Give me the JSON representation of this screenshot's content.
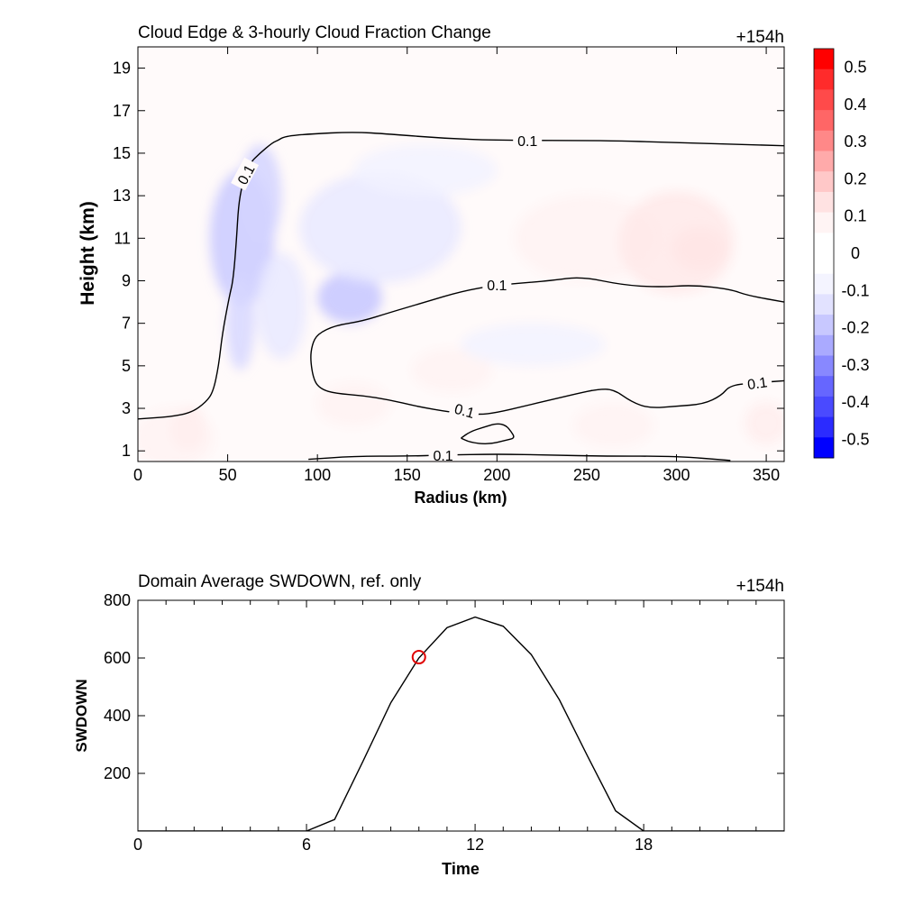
{
  "chart_data": [
    {
      "type": "contour",
      "title": "Cloud Edge & 3-hourly Cloud Fraction Change",
      "time_label": "+154h",
      "xlabel": "Radius (km)",
      "ylabel": "Height (km)",
      "xlim": [
        0,
        360
      ],
      "ylim": [
        0.5,
        20
      ],
      "xticks": [
        "0",
        "50",
        "100",
        "150",
        "200",
        "250",
        "300",
        "350"
      ],
      "yticks": [
        "1",
        "3",
        "5",
        "7",
        "9",
        "11",
        "13",
        "15",
        "17",
        "19"
      ],
      "colorbar": {
        "range": [
          -0.55,
          0.55
        ],
        "labels": [
          "0.5",
          "0.4",
          "0.3",
          "0.2",
          "0.1",
          "0",
          "-0.1",
          "-0.2",
          "-0.3",
          "-0.4",
          "-0.5"
        ],
        "colors_top_to_bottom": [
          "#ff0000",
          "#ff2b2b",
          "#ff4a4a",
          "#ff6666",
          "#ff8888",
          "#ffaaaa",
          "#ffc8c8",
          "#ffe2e2",
          "#fff4f4",
          "#ffffff",
          "#ffffff",
          "#f4f4ff",
          "#e2e2ff",
          "#c8c8ff",
          "#aaaaff",
          "#8888ff",
          "#6666ff",
          "#4a4aff",
          "#2b2bff",
          "#0000ff"
        ]
      },
      "contour_level": "0.1",
      "contours": [
        {
          "level": "0.1",
          "points": [
            [
              0,
              2.5
            ],
            [
              18,
              2.6
            ],
            [
              30,
              2.8
            ],
            [
              38,
              3.3
            ],
            [
              42,
              3.8
            ],
            [
              45,
              5.0
            ],
            [
              47,
              6.5
            ],
            [
              51,
              8.3
            ],
            [
              53,
              9.0
            ],
            [
              55,
              11.0
            ],
            [
              56,
              12.5
            ],
            [
              58,
              13.5
            ],
            [
              62,
              14.5
            ],
            [
              68,
              15.0
            ],
            [
              75,
              15.5
            ],
            [
              78,
              15.6
            ],
            [
              82,
              15.8
            ],
            [
              95,
              15.9
            ],
            [
              120,
              16.0
            ],
            [
              140,
              15.9
            ],
            [
              170,
              15.7
            ],
            [
              200,
              15.6
            ],
            [
              260,
              15.6
            ],
            [
              300,
              15.5
            ],
            [
              360,
              15.35
            ]
          ]
        },
        {
          "level": "0.1",
          "points": [
            [
              360,
              8.0
            ],
            [
              340,
              8.3
            ],
            [
              330,
              8.6
            ],
            [
              310,
              8.8
            ],
            [
              290,
              8.7
            ],
            [
              270,
              8.8
            ],
            [
              247,
              9.2
            ],
            [
              230,
              9.0
            ],
            [
              200,
              8.8
            ],
            [
              180,
              8.5
            ],
            [
              160,
              8.0
            ],
            [
              140,
              7.5
            ],
            [
              125,
              7.1
            ],
            [
              110,
              6.9
            ],
            [
              100,
              6.5
            ],
            [
              97,
              6.0
            ],
            [
              96,
              5.3
            ],
            [
              98,
              4.3
            ],
            [
              102,
              3.9
            ],
            [
              110,
              3.7
            ],
            [
              125,
              3.6
            ],
            [
              140,
              3.4
            ],
            [
              155,
              3.1
            ],
            [
              175,
              2.8
            ],
            [
              190,
              2.7
            ],
            [
              200,
              2.8
            ],
            [
              215,
              3.1
            ],
            [
              230,
              3.4
            ],
            [
              245,
              3.7
            ],
            [
              256,
              3.9
            ],
            [
              265,
              3.9
            ],
            [
              275,
              3.3
            ],
            [
              285,
              3.0
            ],
            [
              300,
              3.1
            ],
            [
              315,
              3.2
            ],
            [
              325,
              3.6
            ],
            [
              330,
              4.1
            ],
            [
              345,
              4.2
            ],
            [
              360,
              4.3
            ]
          ]
        },
        {
          "level": "0.1",
          "points": [
            [
              180,
              1.6
            ],
            [
              185,
              1.9
            ],
            [
              192,
              2.1
            ],
            [
              200,
              2.3
            ],
            [
              205,
              2.2
            ],
            [
              208,
              1.9
            ],
            [
              210,
              1.6
            ],
            [
              205,
              1.5
            ],
            [
              195,
              1.3
            ],
            [
              185,
              1.4
            ],
            [
              180,
              1.6
            ]
          ]
        },
        {
          "level": "0.1",
          "points": [
            [
              95,
              0.6
            ],
            [
              120,
              0.75
            ],
            [
              150,
              0.75
            ],
            [
              170,
              0.8
            ],
            [
              200,
              0.85
            ],
            [
              230,
              0.8
            ],
            [
              260,
              0.75
            ],
            [
              300,
              0.75
            ],
            [
              330,
              0.55
            ]
          ]
        }
      ],
      "anomalies": [
        {
          "x": 58,
          "y": 11,
          "rx": 18,
          "ry": 3.2,
          "value": -0.12
        },
        {
          "x": 68,
          "y": 13,
          "rx": 12,
          "ry": 2.4,
          "value": -0.1
        },
        {
          "x": 57,
          "y": 7,
          "rx": 8,
          "ry": 2.2,
          "value": -0.09
        },
        {
          "x": 118,
          "y": 8.2,
          "rx": 18,
          "ry": 1.2,
          "value": -0.13
        },
        {
          "x": 135,
          "y": 11.5,
          "rx": 45,
          "ry": 2.6,
          "value": -0.05
        },
        {
          "x": 80,
          "y": 7.8,
          "rx": 14,
          "ry": 2.5,
          "value": -0.05
        },
        {
          "x": 250,
          "y": 11,
          "rx": 40,
          "ry": 2.0,
          "value": 0.03
        },
        {
          "x": 313,
          "y": 10.5,
          "rx": 15,
          "ry": 1.0,
          "value": 0.1
        },
        {
          "x": 300,
          "y": 10.8,
          "rx": 32,
          "ry": 2.4,
          "value": 0.05
        },
        {
          "x": 28,
          "y": 2.0,
          "rx": 10,
          "ry": 1.0,
          "value": 0.08
        },
        {
          "x": 20,
          "y": 1.6,
          "rx": 22,
          "ry": 1.4,
          "value": 0.03
        },
        {
          "x": 120,
          "y": 3.2,
          "rx": 20,
          "ry": 1.0,
          "value": 0.03
        },
        {
          "x": 175,
          "y": 4.8,
          "rx": 22,
          "ry": 1.0,
          "value": 0.03
        },
        {
          "x": 265,
          "y": 2.2,
          "rx": 22,
          "ry": 1.0,
          "value": 0.03
        },
        {
          "x": 350,
          "y": 2.3,
          "rx": 12,
          "ry": 1.0,
          "value": 0.04
        },
        {
          "x": 160,
          "y": 14.2,
          "rx": 40,
          "ry": 1.2,
          "value": -0.03
        },
        {
          "x": 220,
          "y": 6.0,
          "rx": 40,
          "ry": 1.0,
          "value": -0.03
        }
      ]
    },
    {
      "type": "line",
      "title": "Domain Average SWDOWN, ref. only",
      "time_label": "+154h",
      "xlabel": "Time",
      "ylabel": "SWDOWN",
      "xlim": [
        0,
        23
      ],
      "ylim": [
        0,
        800
      ],
      "xticks": [
        "0",
        "6",
        "12",
        "18"
      ],
      "yticks": [
        "200",
        "400",
        "600",
        "800"
      ],
      "x": [
        0,
        1,
        2,
        3,
        4,
        5,
        6,
        7,
        8,
        9,
        10,
        11,
        12,
        13,
        14,
        15,
        16,
        17,
        18,
        19,
        20,
        21,
        22,
        23
      ],
      "y": [
        0,
        0,
        0,
        0,
        0,
        0,
        0,
        40,
        240,
        445,
        600,
        705,
        742,
        710,
        612,
        455,
        260,
        70,
        0,
        0,
        0,
        0,
        0,
        0
      ],
      "marker": {
        "x": 10,
        "y": 603,
        "color": "#e00000"
      }
    }
  ]
}
